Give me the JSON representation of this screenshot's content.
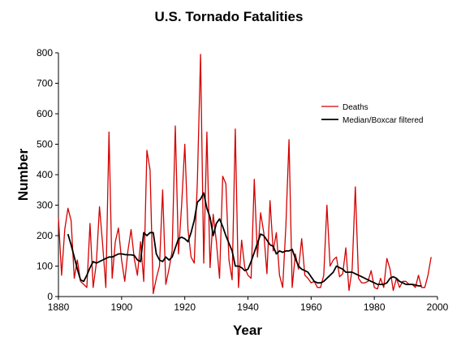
{
  "chart_data": {
    "type": "line",
    "title": "U.S. Tornado Fatalities",
    "xlabel": "Year",
    "ylabel": "Number",
    "xlim": [
      1880,
      2000
    ],
    "ylim": [
      0,
      800
    ],
    "xticks": [
      1880,
      1900,
      1920,
      1940,
      1960,
      1980,
      2000
    ],
    "yticks": [
      0,
      100,
      200,
      300,
      400,
      500,
      600,
      700,
      800
    ],
    "grid": false,
    "legend_position": "top-right",
    "series": [
      {
        "name": "Deaths",
        "color": "#d40000",
        "x": [
          1880,
          1881,
          1882,
          1883,
          1884,
          1885,
          1886,
          1887,
          1888,
          1889,
          1890,
          1891,
          1892,
          1893,
          1894,
          1895,
          1896,
          1897,
          1898,
          1899,
          1900,
          1901,
          1902,
          1903,
          1904,
          1905,
          1906,
          1907,
          1908,
          1909,
          1910,
          1911,
          1912,
          1913,
          1914,
          1915,
          1916,
          1917,
          1918,
          1919,
          1920,
          1921,
          1922,
          1923,
          1924,
          1925,
          1926,
          1927,
          1928,
          1929,
          1930,
          1931,
          1932,
          1933,
          1934,
          1935,
          1936,
          1937,
          1938,
          1939,
          1940,
          1941,
          1942,
          1943,
          1944,
          1945,
          1946,
          1947,
          1948,
          1949,
          1950,
          1951,
          1952,
          1953,
          1954,
          1955,
          1956,
          1957,
          1958,
          1959,
          1960,
          1961,
          1962,
          1963,
          1964,
          1965,
          1966,
          1967,
          1968,
          1969,
          1970,
          1971,
          1972,
          1973,
          1974,
          1975,
          1976,
          1977,
          1978,
          1979,
          1980,
          1981,
          1982,
          1983,
          1984,
          1985,
          1986,
          1987,
          1988,
          1989,
          1990,
          1991,
          1992,
          1993,
          1994,
          1995,
          1996,
          1997,
          1998
        ],
        "values": [
          260,
          70,
          220,
          290,
          250,
          60,
          120,
          50,
          40,
          30,
          240,
          30,
          110,
          295,
          170,
          30,
          540,
          60,
          180,
          225,
          120,
          50,
          150,
          220,
          125,
          70,
          180,
          50,
          480,
          415,
          10,
          60,
          100,
          350,
          40,
          90,
          150,
          560,
          140,
          300,
          500,
          220,
          130,
          110,
          380,
          795,
          110,
          540,
          95,
          270,
          180,
          60,
          395,
          370,
          120,
          55,
          550,
          30,
          185,
          95,
          70,
          60,
          385,
          130,
          275,
          210,
          75,
          315,
          150,
          210,
          70,
          30,
          230,
          515,
          30,
          140,
          90,
          190,
          70,
          60,
          45,
          50,
          30,
          30,
          70,
          300,
          100,
          120,
          130,
          65,
          75,
          160,
          20,
          90,
          360,
          60,
          45,
          45,
          50,
          85,
          30,
          25,
          60,
          30,
          125,
          90,
          20,
          60,
          30,
          50,
          50,
          40,
          40,
          30,
          70,
          30,
          30,
          70,
          130
        ]
      },
      {
        "name": "Median/Boxcar filtered",
        "color": "#000000",
        "x": [
          1883,
          1884,
          1885,
          1886,
          1887,
          1888,
          1889,
          1890,
          1891,
          1892,
          1893,
          1894,
          1895,
          1896,
          1897,
          1898,
          1899,
          1900,
          1901,
          1902,
          1903,
          1904,
          1905,
          1906,
          1907,
          1908,
          1909,
          1910,
          1911,
          1912,
          1913,
          1914,
          1915,
          1916,
          1917,
          1918,
          1919,
          1920,
          1921,
          1922,
          1923,
          1924,
          1925,
          1926,
          1927,
          1928,
          1929,
          1930,
          1931,
          1932,
          1933,
          1934,
          1935,
          1936,
          1937,
          1938,
          1939,
          1940,
          1941,
          1942,
          1943,
          1944,
          1945,
          1946,
          1947,
          1948,
          1949,
          1950,
          1951,
          1952,
          1953,
          1954,
          1955,
          1956,
          1957,
          1958,
          1959,
          1960,
          1961,
          1962,
          1963,
          1964,
          1965,
          1966,
          1967,
          1968,
          1969,
          1970,
          1971,
          1972,
          1973,
          1974,
          1975,
          1976,
          1977,
          1978,
          1979,
          1980,
          1981,
          1982,
          1983,
          1984,
          1985,
          1986,
          1987,
          1988,
          1989,
          1990,
          1991,
          1992,
          1993,
          1994,
          1995
        ],
        "values": [
          205,
          170,
          130,
          90,
          55,
          50,
          70,
          95,
          115,
          110,
          115,
          120,
          125,
          130,
          130,
          135,
          140,
          140,
          138,
          137,
          137,
          135,
          120,
          115,
          210,
          200,
          210,
          210,
          140,
          120,
          115,
          130,
          120,
          130,
          160,
          190,
          195,
          190,
          180,
          210,
          250,
          310,
          320,
          340,
          290,
          260,
          200,
          240,
          255,
          230,
          200,
          175,
          150,
          100,
          100,
          95,
          85,
          90,
          115,
          145,
          175,
          205,
          200,
          185,
          170,
          165,
          140,
          150,
          145,
          150,
          150,
          155,
          125,
          100,
          90,
          85,
          80,
          65,
          50,
          45,
          45,
          50,
          60,
          70,
          80,
          100,
          95,
          90,
          80,
          80,
          80,
          75,
          70,
          65,
          60,
          55,
          50,
          45,
          40,
          40,
          40,
          45,
          60,
          65,
          60,
          50,
          45,
          40,
          40,
          40,
          38,
          35,
          35
        ]
      }
    ]
  }
}
